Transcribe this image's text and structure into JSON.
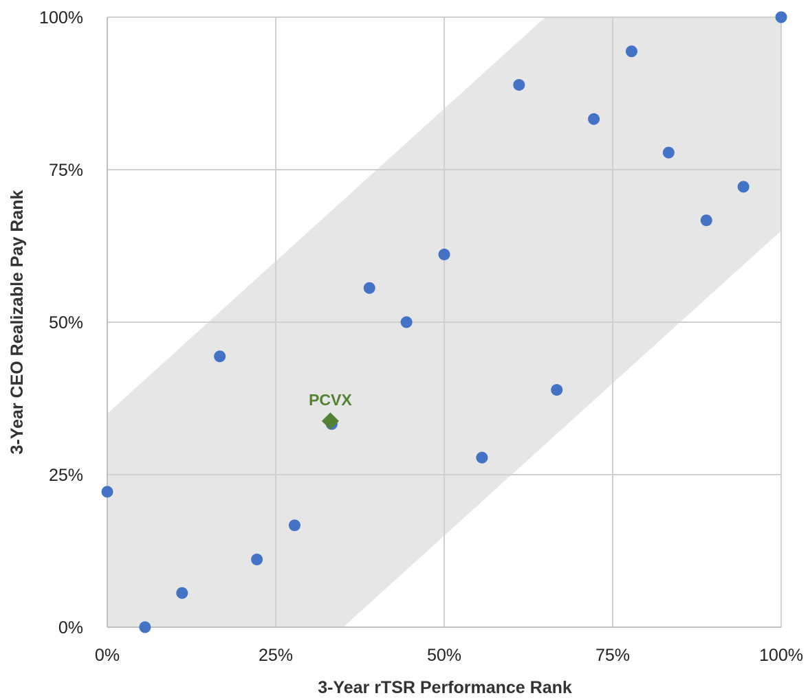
{
  "chart_data": {
    "type": "scatter",
    "title": "",
    "xlabel": "3-Year rTSR Performance Rank",
    "ylabel": "3-Year CEO Realizable Pay Rank",
    "xlim": [
      0,
      100
    ],
    "ylim": [
      0,
      100
    ],
    "x_ticks": [
      "0%",
      "25%",
      "50%",
      "75%",
      "100%"
    ],
    "y_ticks": [
      "0%",
      "25%",
      "50%",
      "75%",
      "100%"
    ],
    "grid": true,
    "legend": "none",
    "band": {
      "description_lower_edge_offset": -35,
      "description_upper_edge_offset": 35
    },
    "series": [
      {
        "name": "",
        "color": "#4472c4",
        "points": [
          {
            "x": 0,
            "y": 22.2
          },
          {
            "x": 5.6,
            "y": 0
          },
          {
            "x": 11.1,
            "y": 5.6
          },
          {
            "x": 16.7,
            "y": 44.4
          },
          {
            "x": 22.2,
            "y": 11.1
          },
          {
            "x": 27.8,
            "y": 16.7
          },
          {
            "x": 33.3,
            "y": 33.3
          },
          {
            "x": 38.9,
            "y": 55.6
          },
          {
            "x": 44.4,
            "y": 50.0
          },
          {
            "x": 50.0,
            "y": 61.1
          },
          {
            "x": 55.6,
            "y": 27.8
          },
          {
            "x": 61.1,
            "y": 88.9
          },
          {
            "x": 66.7,
            "y": 38.9
          },
          {
            "x": 72.2,
            "y": 83.3
          },
          {
            "x": 77.8,
            "y": 94.4
          },
          {
            "x": 83.3,
            "y": 77.8
          },
          {
            "x": 88.9,
            "y": 66.7
          },
          {
            "x": 94.4,
            "y": 72.2
          },
          {
            "x": 100.0,
            "y": 100.0
          }
        ]
      },
      {
        "name": "PCVX",
        "color": "#548235",
        "marker": "diamond",
        "points": [
          {
            "x": 33.1,
            "y": 33.8,
            "label": "PCVX"
          }
        ]
      }
    ],
    "colors": {
      "band": "#e6e6e6",
      "grid": "#d0d0d0",
      "axis": "#bfbfbf"
    }
  }
}
